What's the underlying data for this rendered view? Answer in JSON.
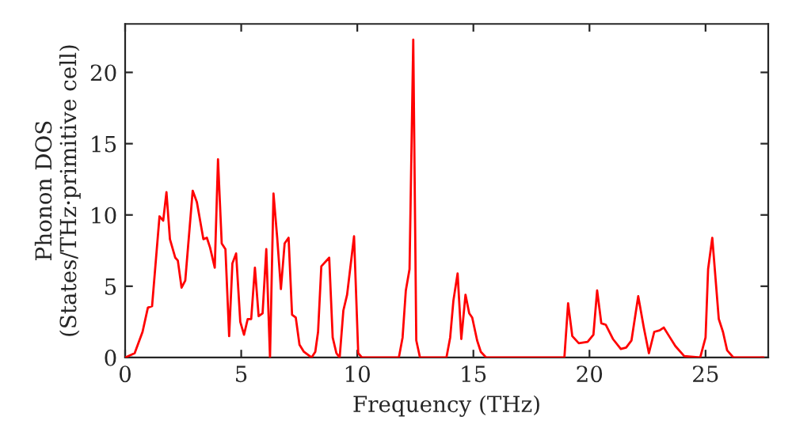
{
  "chart_data": {
    "type": "line",
    "xlabel": "Frequency (THz)",
    "ylabel": "Phonon DOS\n(States/THz·primitive cell)",
    "xlim": [
      0,
      27.7
    ],
    "ylim": [
      0,
      23.4
    ],
    "xticks": [
      0,
      5,
      10,
      15,
      20,
      25
    ],
    "yticks": [
      0,
      5,
      10,
      15,
      20
    ],
    "grid": false,
    "legend": false,
    "series": [
      {
        "color": "#ff0000",
        "x": [
          0,
          0.41,
          0.75,
          0.98,
          1.16,
          1.48,
          1.64,
          1.78,
          1.93,
          2.16,
          2.27,
          2.43,
          2.59,
          2.91,
          3.09,
          3.37,
          3.52,
          3.66,
          3.86,
          4.0,
          4.16,
          4.32,
          4.48,
          4.62,
          4.78,
          4.96,
          5.12,
          5.28,
          5.43,
          5.59,
          5.75,
          5.92,
          6.08,
          6.24,
          6.39,
          6.55,
          6.71,
          6.87,
          7.04,
          7.19,
          7.35,
          7.51,
          7.7,
          8.03,
          8.19,
          8.31,
          8.45,
          8.79,
          8.94,
          9.1,
          9.24,
          9.4,
          9.56,
          9.86,
          10.04,
          10.2,
          11.79,
          11.95,
          12.09,
          12.25,
          12.41,
          12.54,
          12.7,
          13.84,
          14.0,
          14.14,
          14.32,
          14.48,
          14.66,
          14.82,
          14.95,
          15.16,
          15.32,
          15.55,
          18.92,
          19.08,
          19.26,
          19.54,
          19.92,
          20.17,
          20.33,
          20.51,
          20.7,
          21.01,
          21.35,
          21.58,
          21.81,
          22.1,
          22.34,
          22.56,
          22.79,
          23.02,
          23.2,
          23.43,
          23.7,
          24.08,
          24.77,
          25.0,
          25.11,
          25.29,
          25.57,
          25.75,
          25.93,
          26.2,
          27.5
        ],
        "values": [
          0,
          0.3,
          1.8,
          3.5,
          3.6,
          9.9,
          9.6,
          11.6,
          8.3,
          7.0,
          6.8,
          4.9,
          5.4,
          11.7,
          10.9,
          8.3,
          8.4,
          7.7,
          6.3,
          13.9,
          8.0,
          7.6,
          1.5,
          6.6,
          7.3,
          2.5,
          1.6,
          2.7,
          2.7,
          6.3,
          2.9,
          3.1,
          7.6,
          0,
          11.5,
          8.4,
          4.8,
          8.0,
          8.4,
          3.0,
          2.8,
          0.9,
          0.4,
          0,
          0.4,
          1.8,
          6.4,
          7.0,
          1.4,
          0.3,
          0,
          3.3,
          4.4,
          8.5,
          0.3,
          0,
          0,
          1.4,
          4.7,
          6.2,
          22.3,
          1.2,
          0,
          0,
          1.4,
          4.0,
          5.9,
          1.3,
          4.4,
          3.1,
          2.8,
          1.2,
          0.4,
          0,
          0,
          3.8,
          1.5,
          1.0,
          1.1,
          1.6,
          4.7,
          2.4,
          2.3,
          1.3,
          0.6,
          0.7,
          1.2,
          4.3,
          2.1,
          0.3,
          1.8,
          1.9,
          2.1,
          1.5,
          0.8,
          0.1,
          0,
          1.4,
          6.2,
          8.4,
          2.7,
          1.8,
          0.5,
          0,
          0
        ]
      }
    ]
  }
}
